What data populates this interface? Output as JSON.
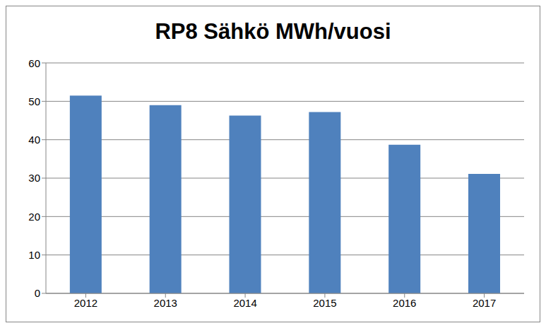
{
  "chart_data": {
    "type": "bar",
    "title": "RP8 Sähkö MWh/vuosi",
    "categories": [
      "2012",
      "2013",
      "2014",
      "2015",
      "2016",
      "2017"
    ],
    "values": [
      51.5,
      49,
      46.3,
      47.2,
      38.7,
      31.1
    ],
    "color": "#4f81bd",
    "ylim": [
      0,
      60
    ],
    "yticks": [
      0,
      10,
      20,
      30,
      40,
      50,
      60
    ],
    "grid": true
  }
}
